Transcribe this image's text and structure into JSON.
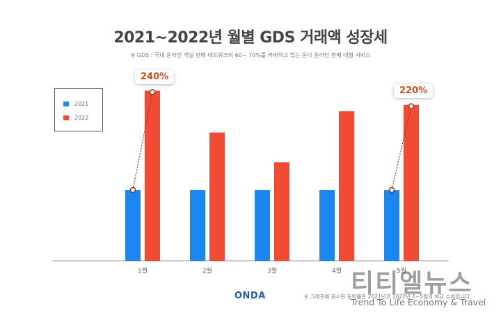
{
  "header": {
    "title": "2021~2022년 월별 GDS 거래액 성장세",
    "subtitle": "※ GDS : 국내 온라인 객실 판매 네트워크의 60~ 70%를 커버하고 있는 온다 온라인 판매 대행 서비스"
  },
  "chart_data": {
    "type": "bar",
    "title": "2021~2022년 월별 GDS 거래액 성장세",
    "categories": [
      "1월",
      "2월",
      "3월",
      "4월",
      "5월"
    ],
    "series": [
      {
        "name": "2021",
        "values": [
          100,
          100,
          100,
          100,
          100
        ],
        "color": "#1a86f0"
      },
      {
        "name": "2022",
        "values": [
          240,
          181,
          139,
          211,
          220
        ],
        "color": "#f24b33"
      }
    ],
    "ylim": [
      0,
      260
    ],
    "grid": false,
    "legend_position": "top-left",
    "annotations": [
      {
        "category": "1월",
        "text": "240%"
      },
      {
        "category": "5월",
        "text": "220%"
      }
    ]
  },
  "footer": {
    "brand": "ONDA",
    "note": "※ 그래프에 표시된 등락률은 2021년과 2022년 1~5월의 비교 수치입니다."
  },
  "watermark": {
    "name": "티티엘뉴스",
    "tagline": "Trend To Life Economy & Travel"
  },
  "colors": {
    "s2021": "#1a86f0",
    "s2022": "#f24b33",
    "callout_text": "#cf4e1f",
    "connector": "#8a3a1a"
  }
}
